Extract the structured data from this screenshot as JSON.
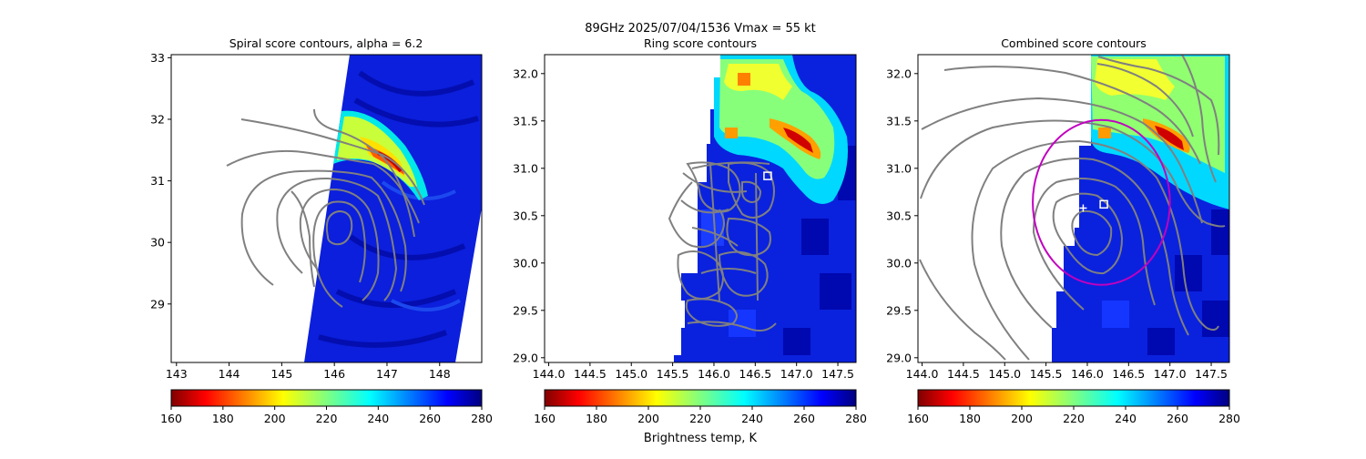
{
  "suptitle_line1": "89GHz  2025/07/04/1536    Vmax = 55 kt",
  "colorbar_label": "Brightness temp, K",
  "colors": {
    "contour": "#808080",
    "ring": "#c000c0",
    "marker": "#ffffff"
  },
  "chart_data": [
    {
      "type": "heatmap",
      "title": "Spiral score contours, alpha =  6.2",
      "colormap": "jet_r",
      "clim": [
        160,
        280
      ],
      "xlim": [
        142.9,
        148.8
      ],
      "ylim": [
        28.05,
        33.05
      ],
      "xticks": [
        143,
        144,
        145,
        146,
        147,
        148
      ],
      "yticks": [
        29,
        30,
        31,
        32,
        33
      ],
      "colorbar_ticks": [
        160,
        180,
        200,
        220,
        240,
        260,
        280
      ],
      "overlay": "spiral score contours"
    },
    {
      "type": "heatmap",
      "title": "Ring score contours",
      "colormap": "jet_r",
      "clim": [
        160,
        280
      ],
      "xlim": [
        143.95,
        147.72
      ],
      "ylim": [
        28.95,
        32.2
      ],
      "xticks": [
        144.0,
        144.5,
        145.0,
        145.5,
        146.0,
        146.5,
        147.0,
        147.5
      ],
      "yticks": [
        29.0,
        29.5,
        30.0,
        30.5,
        31.0,
        31.5,
        32.0
      ],
      "colorbar_ticks": [
        160,
        180,
        200,
        220,
        240,
        260,
        280
      ],
      "overlay": "ring score contours",
      "markers": [
        {
          "shape": "square",
          "x": 146.65,
          "y": 30.92
        }
      ]
    },
    {
      "type": "heatmap",
      "title": "Combined score contours",
      "colormap": "jet_r",
      "clim": [
        160,
        280
      ],
      "xlim": [
        143.95,
        147.72
      ],
      "ylim": [
        28.95,
        32.2
      ],
      "xticks": [
        144.0,
        144.5,
        145.0,
        145.5,
        146.0,
        146.5,
        147.0,
        147.5
      ],
      "yticks": [
        29.0,
        29.5,
        30.0,
        30.5,
        31.0,
        31.5,
        32.0
      ],
      "colorbar_ticks": [
        160,
        180,
        200,
        220,
        240,
        260,
        280
      ],
      "overlay": "combined score contours",
      "markers": [
        {
          "shape": "square",
          "x": 146.2,
          "y": 30.62
        },
        {
          "shape": "plus",
          "x": 145.95,
          "y": 30.58
        }
      ],
      "ring": {
        "cx": 146.17,
        "cy": 30.64,
        "rx": 0.83,
        "ry": 0.87
      }
    }
  ]
}
